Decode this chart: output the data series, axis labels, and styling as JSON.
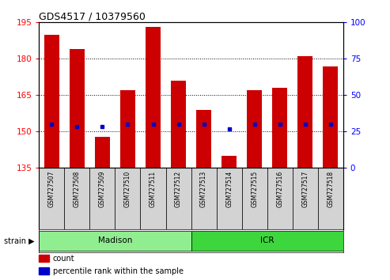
{
  "title": "GDS4517 / 10379560",
  "samples": [
    "GSM727507",
    "GSM727508",
    "GSM727509",
    "GSM727510",
    "GSM727511",
    "GSM727512",
    "GSM727513",
    "GSM727514",
    "GSM727515",
    "GSM727516",
    "GSM727517",
    "GSM727518"
  ],
  "red_tops": [
    190,
    184,
    148,
    167,
    193,
    171,
    159,
    140,
    167,
    168,
    181,
    177
  ],
  "blue_vals": [
    153,
    152,
    152,
    153,
    153,
    153,
    153,
    151,
    153,
    153,
    153,
    153
  ],
  "base": 135,
  "ylim_left": [
    135,
    195
  ],
  "ylim_right": [
    0,
    100
  ],
  "yticks_left": [
    135,
    150,
    165,
    180,
    195
  ],
  "yticks_right": [
    0,
    25,
    50,
    75,
    100
  ],
  "strain_groups": [
    {
      "label": "Madison",
      "start": 0,
      "end": 6,
      "color": "#90EE90"
    },
    {
      "label": "ICR",
      "start": 6,
      "end": 12,
      "color": "#3DD63D"
    }
  ],
  "bar_color": "#CC0000",
  "blue_color": "#0000CC",
  "legend_items": [
    {
      "label": "count",
      "color": "#CC0000"
    },
    {
      "label": "percentile rank within the sample",
      "color": "#0000CC"
    }
  ]
}
